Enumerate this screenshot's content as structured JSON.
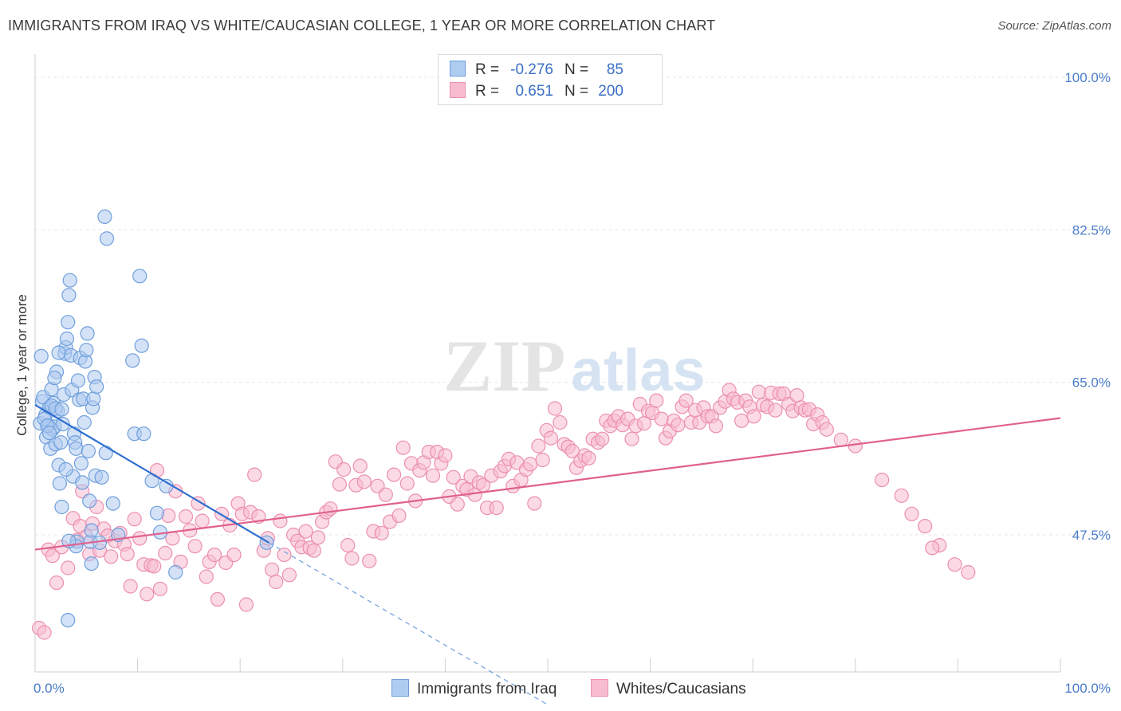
{
  "title": "IMMIGRANTS FROM IRAQ VS WHITE/CAUCASIAN COLLEGE, 1 YEAR OR MORE CORRELATION CHART",
  "source": "Source: ZipAtlas.com",
  "watermark": {
    "zip": "ZIP",
    "atlas": "atlas"
  },
  "legend": {
    "rows": [
      {
        "r_label": "R =",
        "r_value": "-0.276",
        "n_label": "N =",
        "n_value": "85",
        "fill": "#aecbf0",
        "stroke": "#6f9fdc"
      },
      {
        "r_label": "R =",
        "r_value": "0.651",
        "n_label": "N =",
        "n_value": "200",
        "fill": "#f7bcd0",
        "stroke": "#ec8fb0"
      }
    ]
  },
  "bottom_legend": [
    {
      "label": "Immigrants from Iraq",
      "fill": "#aecbf0",
      "stroke": "#6f9fdc"
    },
    {
      "label": "Whites/Caucasians",
      "fill": "#f7bcd0",
      "stroke": "#ec8fb0"
    }
  ],
  "chart_data": {
    "type": "scatter",
    "title": "IMMIGRANTS FROM IRAQ VS WHITE/CAUCASIAN COLLEGE, 1 YEAR OR MORE CORRELATION CHART",
    "xlabel": "",
    "ylabel": "College, 1 year or more",
    "xlim": [
      0,
      100
    ],
    "ylim": [
      33,
      101
    ],
    "x_tick_labels": [
      {
        "value": 0,
        "label": "0.0%"
      },
      {
        "value": 100,
        "label": "100.0%"
      }
    ],
    "y_tick_labels": [
      {
        "value": 47.5,
        "label": "47.5%"
      },
      {
        "value": 65.0,
        "label": "65.0%"
      },
      {
        "value": 82.5,
        "label": "82.5%"
      },
      {
        "value": 100.0,
        "label": "100.0%"
      }
    ],
    "grid": true,
    "series": [
      {
        "name": "Immigrants from Iraq",
        "color": "#6f9fdc",
        "fill": "#aecbf0",
        "trend": {
          "x": [
            0,
            22.8
          ],
          "y": [
            62.4,
            46.6
          ],
          "dashed_to": [
            50,
            28
          ]
        },
        "points": [
          [
            0.5,
            60.3
          ],
          [
            0.7,
            62.8
          ],
          [
            0.8,
            63.3
          ],
          [
            1.0,
            61.2
          ],
          [
            1.1,
            58.7
          ],
          [
            1.3,
            60.1
          ],
          [
            1.4,
            62.1
          ],
          [
            1.5,
            57.4
          ],
          [
            1.6,
            64.2
          ],
          [
            1.7,
            59.6
          ],
          [
            1.8,
            62.6
          ],
          [
            1.9,
            59.9
          ],
          [
            2.0,
            57.9
          ],
          [
            2.1,
            66.2
          ],
          [
            2.2,
            61.7
          ],
          [
            2.3,
            55.5
          ],
          [
            2.4,
            53.4
          ],
          [
            2.5,
            58.1
          ],
          [
            2.6,
            50.7
          ],
          [
            2.7,
            60.2
          ],
          [
            2.8,
            63.6
          ],
          [
            2.9,
            68.3
          ],
          [
            3.0,
            69.0
          ],
          [
            3.1,
            70.0
          ],
          [
            3.2,
            71.9
          ],
          [
            3.3,
            75.0
          ],
          [
            3.4,
            76.7
          ],
          [
            3.5,
            68.1
          ],
          [
            3.6,
            64.1
          ],
          [
            3.7,
            54.2
          ],
          [
            3.8,
            59.1
          ],
          [
            3.9,
            58.1
          ],
          [
            4.0,
            57.4
          ],
          [
            4.1,
            46.7
          ],
          [
            4.2,
            65.2
          ],
          [
            4.3,
            63.0
          ],
          [
            4.4,
            67.8
          ],
          [
            4.5,
            55.7
          ],
          [
            4.6,
            53.5
          ],
          [
            4.7,
            63.1
          ],
          [
            4.8,
            60.4
          ],
          [
            4.9,
            67.4
          ],
          [
            5.0,
            68.7
          ],
          [
            5.1,
            70.6
          ],
          [
            5.2,
            57.1
          ],
          [
            5.3,
            51.4
          ],
          [
            5.4,
            46.7
          ],
          [
            5.5,
            44.2
          ],
          [
            5.6,
            62.1
          ],
          [
            5.7,
            63.1
          ],
          [
            5.8,
            65.6
          ],
          [
            5.9,
            54.3
          ],
          [
            6.0,
            64.5
          ],
          [
            6.3,
            46.6
          ],
          [
            6.5,
            54.1
          ],
          [
            5.5,
            48.0
          ],
          [
            6.8,
            84.0
          ],
          [
            6.9,
            56.9
          ],
          [
            7.0,
            81.5
          ],
          [
            7.6,
            51.1
          ],
          [
            8.1,
            47.5
          ],
          [
            9.5,
            67.5
          ],
          [
            9.7,
            59.1
          ],
          [
            10.2,
            77.2
          ],
          [
            10.4,
            69.2
          ],
          [
            10.6,
            59.1
          ],
          [
            11.4,
            53.7
          ],
          [
            11.9,
            50.0
          ],
          [
            12.2,
            47.8
          ],
          [
            12.8,
            53.1
          ],
          [
            13.7,
            43.2
          ],
          [
            22.6,
            46.6
          ],
          [
            3.2,
            37.7
          ],
          [
            0.9,
            60.8
          ],
          [
            1.2,
            60.0
          ],
          [
            1.6,
            62.3
          ],
          [
            2.0,
            62.0
          ],
          [
            3.0,
            55.0
          ],
          [
            4.0,
            46.2
          ],
          [
            3.3,
            46.8
          ],
          [
            2.6,
            61.9
          ],
          [
            1.4,
            59.2
          ],
          [
            0.6,
            68.0
          ],
          [
            1.9,
            65.5
          ],
          [
            2.3,
            68.4
          ]
        ]
      },
      {
        "name": "Whites/Caucasians",
        "color": "#ec8fb0",
        "fill": "#f7bcd0",
        "trend": {
          "x": [
            0,
            100
          ],
          "y": [
            45.8,
            60.9
          ]
        },
        "points": [
          [
            0.4,
            36.8
          ],
          [
            0.9,
            36.3
          ],
          [
            1.3,
            45.8
          ],
          [
            1.7,
            45.1
          ],
          [
            2.1,
            42.0
          ],
          [
            2.6,
            46.1
          ],
          [
            3.2,
            43.7
          ],
          [
            3.7,
            49.4
          ],
          [
            4.1,
            46.9
          ],
          [
            4.4,
            48.5
          ],
          [
            4.6,
            52.5
          ],
          [
            5.0,
            47.3
          ],
          [
            5.3,
            45.3
          ],
          [
            5.6,
            48.8
          ],
          [
            6.0,
            50.7
          ],
          [
            6.3,
            45.7
          ],
          [
            6.7,
            48.2
          ],
          [
            7.1,
            47.4
          ],
          [
            7.4,
            45.0
          ],
          [
            7.8,
            46.8
          ],
          [
            8.3,
            47.7
          ],
          [
            8.7,
            46.4
          ],
          [
            9.0,
            45.3
          ],
          [
            9.3,
            41.6
          ],
          [
            9.7,
            49.3
          ],
          [
            10.2,
            47.1
          ],
          [
            10.6,
            44.1
          ],
          [
            10.9,
            40.7
          ],
          [
            11.3,
            44.0
          ],
          [
            11.6,
            43.9
          ],
          [
            11.9,
            54.9
          ],
          [
            12.2,
            41.3
          ],
          [
            12.7,
            45.4
          ],
          [
            13.0,
            49.7
          ],
          [
            13.4,
            47.1
          ],
          [
            13.7,
            52.5
          ],
          [
            14.2,
            44.4
          ],
          [
            14.7,
            49.6
          ],
          [
            15.1,
            48.0
          ],
          [
            15.6,
            46.2
          ],
          [
            15.9,
            51.1
          ],
          [
            16.3,
            49.1
          ],
          [
            16.7,
            42.7
          ],
          [
            17.0,
            44.4
          ],
          [
            17.5,
            45.2
          ],
          [
            17.8,
            40.1
          ],
          [
            18.2,
            49.9
          ],
          [
            18.6,
            44.3
          ],
          [
            19.0,
            48.6
          ],
          [
            19.4,
            45.2
          ],
          [
            19.8,
            51.1
          ],
          [
            20.2,
            49.9
          ],
          [
            20.6,
            39.5
          ],
          [
            21.0,
            50.1
          ],
          [
            21.4,
            54.4
          ],
          [
            21.8,
            49.6
          ],
          [
            22.3,
            45.7
          ],
          [
            22.7,
            47.1
          ],
          [
            23.1,
            43.5
          ],
          [
            23.5,
            42.1
          ],
          [
            23.9,
            49.1
          ],
          [
            24.3,
            45.2
          ],
          [
            24.8,
            42.9
          ],
          [
            25.2,
            47.5
          ],
          [
            25.6,
            46.8
          ],
          [
            26.0,
            46.1
          ],
          [
            26.4,
            47.9
          ],
          [
            26.8,
            46.0
          ],
          [
            27.2,
            45.7
          ],
          [
            27.6,
            47.2
          ],
          [
            28.0,
            49.0
          ],
          [
            28.4,
            50.1
          ],
          [
            28.8,
            50.5
          ],
          [
            29.3,
            55.9
          ],
          [
            29.7,
            53.3
          ],
          [
            30.1,
            55.0
          ],
          [
            30.5,
            46.3
          ],
          [
            30.9,
            44.8
          ],
          [
            31.3,
            53.2
          ],
          [
            31.7,
            55.4
          ],
          [
            32.1,
            53.6
          ],
          [
            32.6,
            44.5
          ],
          [
            33.0,
            47.9
          ],
          [
            33.4,
            53.1
          ],
          [
            33.8,
            47.7
          ],
          [
            34.2,
            52.1
          ],
          [
            34.6,
            49.0
          ],
          [
            35.0,
            54.4
          ],
          [
            35.5,
            49.7
          ],
          [
            35.9,
            57.5
          ],
          [
            36.3,
            53.4
          ],
          [
            36.7,
            55.7
          ],
          [
            37.1,
            51.4
          ],
          [
            37.5,
            54.9
          ],
          [
            37.9,
            55.8
          ],
          [
            38.4,
            57.0
          ],
          [
            38.8,
            54.3
          ],
          [
            39.2,
            57.0
          ],
          [
            39.6,
            55.7
          ],
          [
            40.0,
            56.6
          ],
          [
            40.4,
            51.9
          ],
          [
            40.8,
            54.1
          ],
          [
            41.2,
            51.0
          ],
          [
            41.7,
            53.1
          ],
          [
            42.1,
            52.7
          ],
          [
            42.5,
            54.2
          ],
          [
            42.9,
            52.1
          ],
          [
            43.3,
            53.5
          ],
          [
            43.7,
            53.2
          ],
          [
            44.1,
            50.6
          ],
          [
            44.5,
            54.3
          ],
          [
            45.0,
            50.6
          ],
          [
            45.4,
            54.8
          ],
          [
            45.8,
            55.4
          ],
          [
            46.2,
            56.2
          ],
          [
            46.6,
            53.1
          ],
          [
            47.0,
            55.8
          ],
          [
            47.4,
            53.8
          ],
          [
            47.9,
            55.0
          ],
          [
            48.3,
            55.6
          ],
          [
            48.7,
            51.1
          ],
          [
            49.1,
            57.7
          ],
          [
            49.5,
            56.1
          ],
          [
            49.9,
            59.5
          ],
          [
            50.3,
            58.6
          ],
          [
            50.7,
            62.0
          ],
          [
            51.2,
            60.4
          ],
          [
            51.6,
            57.9
          ],
          [
            52.0,
            57.6
          ],
          [
            52.4,
            57.1
          ],
          [
            52.8,
            55.2
          ],
          [
            53.2,
            56.0
          ],
          [
            53.6,
            56.6
          ],
          [
            54.0,
            56.3
          ],
          [
            54.4,
            58.5
          ],
          [
            54.9,
            58.1
          ],
          [
            55.3,
            58.5
          ],
          [
            55.7,
            60.6
          ],
          [
            56.1,
            60.0
          ],
          [
            56.5,
            60.6
          ],
          [
            56.9,
            61.1
          ],
          [
            57.3,
            60.1
          ],
          [
            57.8,
            60.8
          ],
          [
            58.2,
            58.5
          ],
          [
            58.6,
            60.0
          ],
          [
            59.0,
            62.5
          ],
          [
            59.4,
            60.3
          ],
          [
            59.8,
            61.7
          ],
          [
            60.2,
            61.5
          ],
          [
            60.6,
            62.9
          ],
          [
            61.1,
            60.8
          ],
          [
            61.5,
            58.6
          ],
          [
            61.9,
            59.4
          ],
          [
            62.3,
            60.6
          ],
          [
            62.7,
            60.1
          ],
          [
            63.1,
            62.2
          ],
          [
            63.5,
            62.9
          ],
          [
            64.0,
            60.4
          ],
          [
            64.4,
            61.8
          ],
          [
            64.8,
            60.4
          ],
          [
            65.2,
            62.1
          ],
          [
            65.6,
            61.1
          ],
          [
            66.0,
            61.1
          ],
          [
            66.4,
            60.0
          ],
          [
            66.8,
            62.1
          ],
          [
            67.3,
            62.8
          ],
          [
            67.7,
            64.1
          ],
          [
            68.1,
            63.1
          ],
          [
            68.5,
            62.7
          ],
          [
            68.9,
            60.6
          ],
          [
            69.3,
            62.9
          ],
          [
            69.7,
            62.2
          ],
          [
            70.1,
            61.1
          ],
          [
            70.6,
            63.9
          ],
          [
            71.0,
            62.4
          ],
          [
            71.4,
            62.2
          ],
          [
            71.8,
            63.8
          ],
          [
            72.2,
            61.8
          ],
          [
            72.6,
            63.7
          ],
          [
            73.0,
            63.7
          ],
          [
            73.5,
            62.5
          ],
          [
            73.9,
            61.7
          ],
          [
            74.3,
            63.5
          ],
          [
            74.7,
            62.1
          ],
          [
            75.1,
            61.8
          ],
          [
            75.5,
            61.9
          ],
          [
            75.9,
            60.2
          ],
          [
            76.3,
            61.3
          ],
          [
            76.8,
            60.4
          ],
          [
            77.2,
            59.6
          ],
          [
            78.6,
            58.4
          ],
          [
            80.0,
            57.7
          ],
          [
            82.6,
            53.8
          ],
          [
            84.5,
            52.0
          ],
          [
            86.8,
            48.5
          ],
          [
            88.2,
            46.3
          ],
          [
            89.7,
            44.1
          ],
          [
            91.0,
            43.2
          ],
          [
            87.5,
            46.0
          ],
          [
            85.5,
            49.9
          ]
        ]
      }
    ]
  }
}
